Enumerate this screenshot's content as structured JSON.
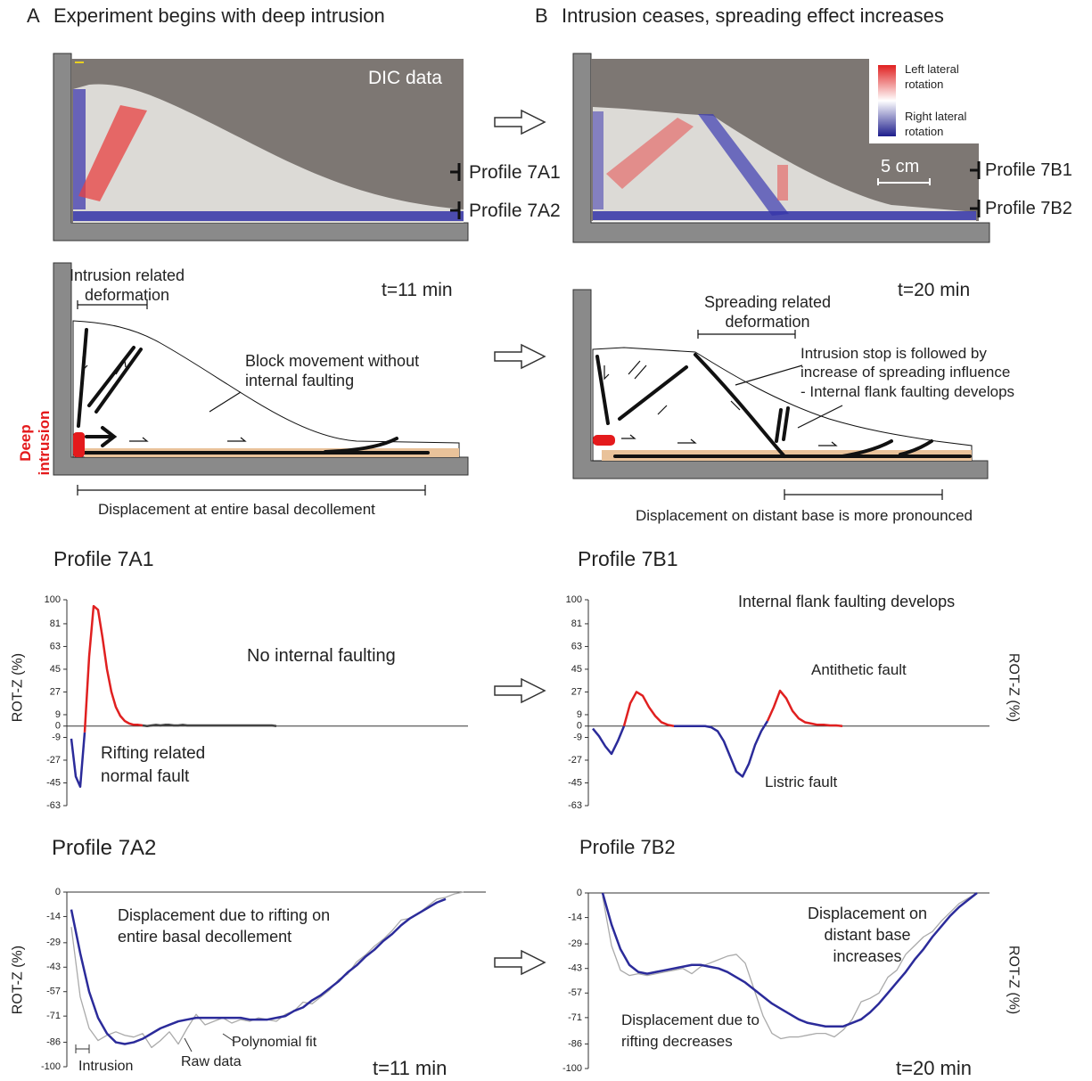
{
  "panels": [
    {
      "label": "A",
      "title": "Experiment begins with deep intrusion"
    },
    {
      "label": "B",
      "title": "Intrusion ceases, spreading effect increases"
    }
  ],
  "dic": {
    "label": "DIC data",
    "legend": [
      "Left lateral rotation",
      "Right lateral rotation"
    ],
    "scale": "5 cm",
    "profiles_a": [
      "Profile 7A1",
      "Profile 7A2"
    ],
    "profiles_b": [
      "Profile 7B1",
      "Profile 7B2"
    ]
  },
  "diagram_a": {
    "deformation": "Intrusion related deformation",
    "time": "t=11 min",
    "block": "Block movement without internal faulting",
    "intrusion": "Deep intrusion",
    "displacement": "Displacement at entire basal decollement"
  },
  "diagram_b": {
    "deformation": "Spreading related deformation",
    "time": "t=20 min",
    "note": [
      "Intrusion stop is followed by increase of spreading influence",
      "- Internal flank faulting develops"
    ],
    "displacement": "Displacement on distant base is more pronounced"
  },
  "chart_data": [
    {
      "type": "line",
      "title": "Profile 7A1",
      "ylabel": "ROT-Z (%)",
      "ylim": [
        -63,
        100
      ],
      "yticks": [
        100,
        81,
        63,
        45,
        27,
        9,
        0,
        -9,
        -27,
        -45,
        -63
      ],
      "annotations": [
        "No internal faulting",
        "Rifting related normal fault"
      ],
      "series": [
        {
          "color": "#2b2b9a",
          "values": [
            -10,
            -40,
            -48,
            -5,
            null,
            null,
            null,
            null,
            null,
            null,
            null,
            null,
            null,
            null,
            null,
            null,
            null,
            null,
            null,
            null,
            null,
            null,
            null,
            null,
            null,
            null,
            null,
            null,
            null,
            null,
            null,
            null,
            null,
            null,
            null,
            null,
            null,
            null,
            null,
            null,
            null,
            null,
            null,
            null,
            null,
            null,
            null
          ]
        },
        {
          "color": "#e02020",
          "values": [
            null,
            null,
            null,
            -5,
            55,
            95,
            92,
            70,
            45,
            27,
            15,
            8,
            4,
            2,
            1,
            1,
            0.5,
            null,
            null,
            null,
            null,
            null,
            null,
            null,
            null,
            null,
            null,
            null,
            null,
            null,
            null,
            null,
            null,
            null,
            null,
            null,
            null,
            null,
            null,
            null,
            null,
            null,
            null,
            null,
            null,
            null,
            null
          ]
        },
        {
          "color": "#444444",
          "values": [
            null,
            null,
            null,
            null,
            null,
            null,
            null,
            null,
            null,
            null,
            null,
            null,
            null,
            null,
            null,
            null,
            0.5,
            0,
            0.5,
            1,
            0.5,
            1,
            1,
            0.5,
            0.5,
            1,
            0.5,
            0.5,
            0.5,
            0.5,
            0.5,
            0.5,
            0.5,
            0.5,
            0.5,
            0.5,
            0.5,
            0.5,
            0.5,
            0.5,
            0.5,
            0.5,
            0.5,
            0.5,
            0.5,
            0.5,
            0
          ]
        }
      ]
    },
    {
      "type": "line",
      "title": "Profile 7B1",
      "ylabel": "ROT-Z (%)",
      "ylim": [
        -63,
        100
      ],
      "yticks": [
        100,
        81,
        63,
        45,
        27,
        9,
        0,
        -9,
        -27,
        -45,
        -63
      ],
      "annotations": [
        "Internal flank faulting develops",
        "Antithetic fault",
        "Listric fault"
      ],
      "series": [
        {
          "color": "#2b2b9a",
          "values": [
            -2,
            -8,
            -16,
            -22,
            -12,
            0,
            null,
            null,
            null,
            null,
            null,
            null,
            null,
            0,
            0,
            0,
            0,
            0,
            0,
            -1,
            -4,
            -12,
            -24,
            -36,
            -40,
            -30,
            -15,
            -4,
            4,
            null,
            null,
            null,
            null,
            null,
            null,
            null,
            null,
            null,
            null,
            null,
            null
          ]
        },
        {
          "color": "#e02020",
          "values": [
            null,
            null,
            null,
            null,
            null,
            0,
            18,
            27,
            24,
            15,
            8,
            3,
            1,
            0,
            null,
            null,
            null,
            null,
            null,
            null,
            null,
            null,
            null,
            null,
            null,
            null,
            null,
            null,
            4,
            15,
            28,
            22,
            12,
            6,
            3,
            2,
            1,
            1,
            0.5,
            0.5,
            0
          ]
        }
      ]
    },
    {
      "type": "line",
      "title": "Profile 7A2",
      "ylabel": "ROT-Z (%)",
      "ylim": [
        -100,
        0
      ],
      "yticks": [
        0,
        -14,
        -29,
        -43,
        -57,
        -71,
        -86,
        -100
      ],
      "annotations": [
        "Displacement due to rifting on entire basal decollement",
        "Intrusion",
        "Raw data",
        "Polynomial fit",
        "t=11 min"
      ],
      "series": [
        {
          "color": "#aaaaaa",
          "values": [
            -20,
            -60,
            -78,
            -85,
            -82,
            -80,
            -82,
            -83,
            -81,
            -89,
            -85,
            -80,
            -87,
            -78,
            -70,
            -76,
            -74,
            -72,
            -75,
            -73,
            -74,
            -72,
            -73,
            -74,
            -70,
            -68,
            -63,
            -64,
            -60,
            -56,
            -50,
            -47,
            -40,
            -36,
            -31,
            -27,
            -22,
            -16,
            -15,
            -12,
            -8,
            -4,
            -3,
            -1,
            0
          ]
        },
        {
          "color": "#2b2b9a",
          "values": [
            -10,
            -35,
            -57,
            -72,
            -81,
            -86,
            -87,
            -86,
            -84,
            -81,
            -78,
            -76,
            -74,
            -73,
            -72,
            -72,
            -72,
            -72,
            -72,
            -72,
            -73,
            -73,
            -73,
            -72,
            -71,
            -68,
            -66,
            -62,
            -59,
            -55,
            -51,
            -46,
            -42,
            -37,
            -33,
            -28,
            -24,
            -19,
            -15,
            -12,
            -9,
            -6,
            -4,
            null,
            null
          ]
        }
      ]
    },
    {
      "type": "line",
      "title": "Profile 7B2",
      "ylabel": "ROT-Z (%)",
      "ylim": [
        -100,
        0
      ],
      "yticks": [
        0,
        -14,
        -29,
        -43,
        -57,
        -71,
        -86,
        -100
      ],
      "annotations": [
        "Displacement on distant base increases",
        "Displacement due to rifting decreases",
        "t=20 min"
      ],
      "series": [
        {
          "color": "#aaaaaa",
          "values": [
            -2,
            -30,
            -44,
            -47,
            -46,
            -47,
            -46,
            -45,
            -44,
            -43,
            -46,
            -42,
            -40,
            -38,
            -36,
            -35,
            -40,
            -55,
            -70,
            -80,
            -83,
            -82,
            -82,
            -81,
            -80,
            -80,
            -82,
            -78,
            -72,
            -62,
            -60,
            -57,
            -48,
            -44,
            -35,
            -30,
            -25,
            -22,
            -16,
            -11,
            -6,
            -3,
            0
          ]
        },
        {
          "color": "#2b2b9a",
          "values": [
            0,
            -18,
            -32,
            -41,
            -45,
            -46,
            -45,
            -44,
            -43,
            -42,
            -41,
            -41,
            -42,
            -43,
            -45,
            -48,
            -51,
            -55,
            -59,
            -63,
            -66,
            -69,
            -72,
            -74,
            -75,
            -76,
            -76,
            -76,
            -74,
            -72,
            -68,
            -63,
            -57,
            -51,
            -45,
            -38,
            -32,
            -25,
            -19,
            -13,
            -8,
            -4,
            0
          ]
        }
      ]
    }
  ]
}
